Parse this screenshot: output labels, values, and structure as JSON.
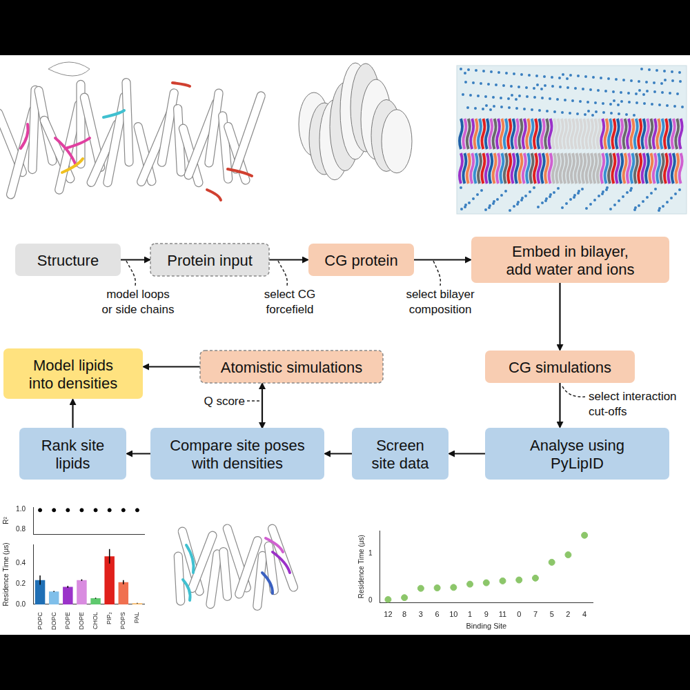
{
  "diagram": {
    "nodes": [
      {
        "lines": [
          "Structure"
        ],
        "color": "#e2e2e2"
      },
      {
        "lines": [
          "Protein input"
        ],
        "color": "#e2e2e2",
        "line_style": "dashed"
      },
      {
        "lines": [
          "CG protein"
        ],
        "color": "#f8cdb2"
      },
      {
        "lines": [
          "Embed in bilayer,",
          "add water and ions"
        ],
        "color": "#f8cdb2"
      },
      {
        "lines": [
          "CG simulations"
        ],
        "color": "#f8cdb2"
      },
      {
        "lines": [
          "Analyse using",
          "PyLipID"
        ],
        "color": "#b7d2ea"
      },
      {
        "lines": [
          "Screen",
          "site data"
        ],
        "color": "#b7d2ea"
      },
      {
        "lines": [
          "Compare site poses",
          "with densities"
        ],
        "color": "#b7d2ea"
      },
      {
        "lines": [
          "Rank site",
          "lipids"
        ],
        "color": "#b7d2ea"
      },
      {
        "lines": [
          "Model lipids",
          "into densities"
        ],
        "color": "#ffe27f"
      },
      {
        "lines": [
          "Atomistic simulations"
        ],
        "color": "#f8cdb2",
        "line_style": "dashed"
      }
    ],
    "edges": [
      {
        "from": 0,
        "to": 1
      },
      {
        "from": 1,
        "to": 2
      },
      {
        "from": 2,
        "to": 3
      },
      {
        "from": 3,
        "to": 4
      },
      {
        "from": 4,
        "to": 5
      },
      {
        "from": 5,
        "to": 6
      },
      {
        "from": 6,
        "to": 7
      },
      {
        "from": 7,
        "to": 8
      },
      {
        "from": 8,
        "to": 9
      },
      {
        "from": 10,
        "to": 9
      },
      {
        "from": 7,
        "to": 10,
        "both": true
      }
    ],
    "annotations": [
      {
        "lines": [
          "model loops",
          "or side chains"
        ]
      },
      {
        "lines": [
          "select CG",
          "forcefield"
        ]
      },
      {
        "lines": [
          "select bilayer",
          "composition"
        ]
      },
      {
        "lines": [
          "select interaction",
          "cut-offs"
        ]
      },
      {
        "lines": [
          "Q score"
        ]
      }
    ]
  },
  "chart_data": [
    {
      "type": "scatter",
      "values": [
        0.99,
        0.99,
        0.99,
        0.99,
        0.99,
        0.99,
        0.99,
        0.99
      ],
      "y_label": "R²",
      "ylim": [
        0.75,
        1.02
      ],
      "yticks": [
        0.8,
        {
          "value": 1,
          "label": "1.0"
        }
      ],
      "tick_labels": "y",
      "color": "#000000",
      "marker": "circle",
      "grid": false
    },
    {
      "type": "bar",
      "categories": [
        "POPC",
        "DOPC",
        "POPE",
        "DOPE",
        "CHOL",
        "PIP₂",
        "POPS",
        "PAL"
      ],
      "values": [
        0.235,
        0.125,
        0.17,
        0.235,
        0.06,
        0.465,
        0.215,
        0.012
      ],
      "errors": [
        0.045,
        0.005,
        0.01,
        0.008,
        0.005,
        0.07,
        0.02,
        0.003
      ],
      "colors": [
        "#1f6fb5",
        "#7fbfea",
        "#9b33c9",
        "#d98be0",
        "#5ec96e",
        "#e0201b",
        "#f07050",
        "#f5b86a"
      ],
      "y_label": "Residence Time (μs)",
      "ylim": [
        0,
        0.58
      ],
      "yticks": [
        {
          "value": 0,
          "label": "0.0"
        },
        0.2,
        0.4
      ],
      "grid": false
    },
    {
      "type": "scatter",
      "categories": [
        "12",
        "8",
        "3",
        "6",
        "10",
        "1",
        "9",
        "11",
        "0",
        "7",
        "5",
        "2",
        "4"
      ],
      "values": [
        0.02,
        0.06,
        0.26,
        0.27,
        0.28,
        0.35,
        0.38,
        0.42,
        0.44,
        0.48,
        0.82,
        0.98,
        1.4
      ],
      "x_label": "Binding Site",
      "y_label": "Residence Time (μs)",
      "ylim": [
        -0.05,
        1.5
      ],
      "yticks": [
        0,
        1
      ],
      "color": "#8cc66a",
      "marker": "circle",
      "grid": false
    }
  ]
}
